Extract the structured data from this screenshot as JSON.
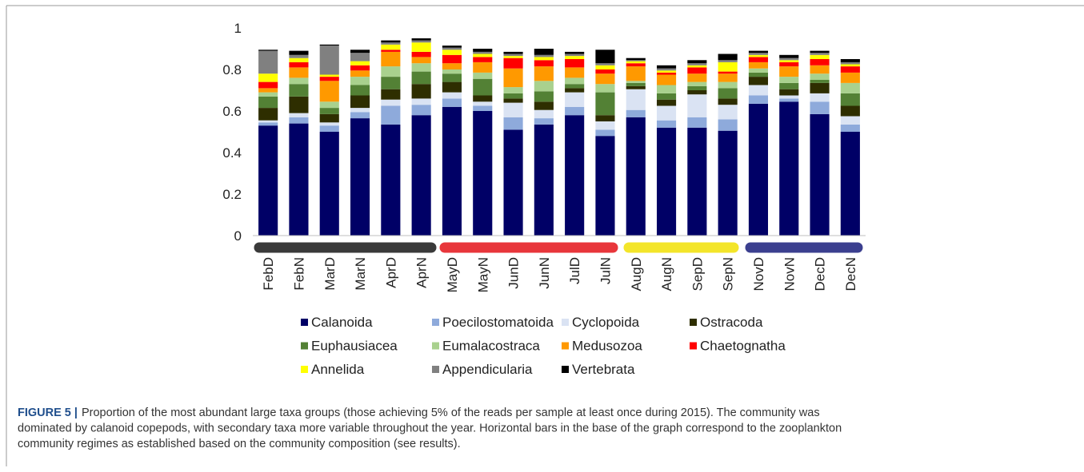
{
  "chart_data": {
    "type": "stacked_bar",
    "categories": [
      "FebD",
      "FebN",
      "MarD",
      "MarN",
      "AprD",
      "AprN",
      "MayD",
      "MayN",
      "JunD",
      "JunN",
      "JulD",
      "JulN",
      "AugD",
      "AugN",
      "SepD",
      "SepN",
      "NovD",
      "NovN",
      "DecD",
      "DecN"
    ],
    "series": [
      {
        "name": "Calanoida",
        "color": "#000066",
        "values": [
          0.53,
          0.54,
          0.5,
          0.565,
          0.535,
          0.58,
          0.62,
          0.6,
          0.51,
          0.535,
          0.58,
          0.48,
          0.57,
          0.52,
          0.52,
          0.505,
          0.635,
          0.645,
          0.585,
          0.5
        ]
      },
      {
        "name": "Poecilostomatoida",
        "color": "#8eaadb",
        "values": [
          0.015,
          0.03,
          0.03,
          0.03,
          0.09,
          0.05,
          0.04,
          0.025,
          0.06,
          0.03,
          0.04,
          0.03,
          0.035,
          0.035,
          0.05,
          0.055,
          0.04,
          0.015,
          0.06,
          0.035
        ]
      },
      {
        "name": "Cyclopoida",
        "color": "#dae3f3",
        "values": [
          0.01,
          0.02,
          0.015,
          0.02,
          0.03,
          0.03,
          0.03,
          0.02,
          0.07,
          0.04,
          0.07,
          0.04,
          0.1,
          0.07,
          0.11,
          0.07,
          0.05,
          0.015,
          0.04,
          0.04
        ]
      },
      {
        "name": "Ostracoda",
        "color": "#2e2e00",
        "values": [
          0.06,
          0.08,
          0.04,
          0.06,
          0.05,
          0.07,
          0.05,
          0.03,
          0.02,
          0.04,
          0.02,
          0.03,
          0.015,
          0.03,
          0.02,
          0.03,
          0.04,
          0.03,
          0.05,
          0.05
        ]
      },
      {
        "name": "Euphausiacea",
        "color": "#538135",
        "values": [
          0.055,
          0.06,
          0.03,
          0.05,
          0.06,
          0.06,
          0.04,
          0.08,
          0.025,
          0.05,
          0.02,
          0.11,
          0.015,
          0.03,
          0.02,
          0.05,
          0.02,
          0.03,
          0.015,
          0.06
        ]
      },
      {
        "name": "Eumalacostraca",
        "color": "#a9d18e",
        "values": [
          0.02,
          0.03,
          0.03,
          0.04,
          0.05,
          0.04,
          0.02,
          0.03,
          0.03,
          0.05,
          0.03,
          0.04,
          0.01,
          0.04,
          0.02,
          0.03,
          0.02,
          0.03,
          0.03,
          0.05
        ]
      },
      {
        "name": "Medusozoa",
        "color": "#ff9900",
        "values": [
          0.02,
          0.05,
          0.1,
          0.03,
          0.07,
          0.03,
          0.03,
          0.05,
          0.09,
          0.07,
          0.05,
          0.05,
          0.07,
          0.05,
          0.04,
          0.04,
          0.03,
          0.05,
          0.04,
          0.05
        ]
      },
      {
        "name": "Chaetognatha",
        "color": "#ff0000",
        "values": [
          0.03,
          0.025,
          0.02,
          0.025,
          0.01,
          0.025,
          0.04,
          0.025,
          0.05,
          0.03,
          0.04,
          0.02,
          0.015,
          0.01,
          0.03,
          0.01,
          0.025,
          0.02,
          0.03,
          0.03
        ]
      },
      {
        "name": "Annelida",
        "color": "#ffff00",
        "values": [
          0.04,
          0.02,
          0.01,
          0.02,
          0.025,
          0.045,
          0.025,
          0.015,
          0.01,
          0.015,
          0.015,
          0.02,
          0.01,
          0.01,
          0.01,
          0.045,
          0.01,
          0.01,
          0.02,
          0.01
        ]
      },
      {
        "name": "Appendicularia",
        "color": "#808080",
        "values": [
          0.11,
          0.015,
          0.14,
          0.04,
          0.01,
          0.01,
          0.01,
          0.01,
          0.01,
          0.01,
          0.01,
          0.01,
          0.005,
          0.01,
          0.01,
          0.01,
          0.01,
          0.01,
          0.01,
          0.01
        ]
      },
      {
        "name": "Vertebrata",
        "color": "#000000",
        "values": [
          0.005,
          0.02,
          0.005,
          0.015,
          0.01,
          0.01,
          0.01,
          0.015,
          0.01,
          0.03,
          0.01,
          0.065,
          0.01,
          0.015,
          0.015,
          0.03,
          0.01,
          0.015,
          0.01,
          0.015
        ]
      }
    ],
    "ylim": [
      0,
      1
    ],
    "yticks": [
      0,
      0.2,
      0.4,
      0.6,
      0.8,
      1
    ],
    "grid": false
  },
  "caption": {
    "label": "FIGURE 5 |",
    "lines": [
      "Proportion of the most abundant large taxa groups (those achieving 5% of the reads per sample at least once during 2015). The community was",
      "dominated by calanoid copepods, with secondary taxa more variable throughout the year. Horizontal bars in the base of the graph correspond to the zooplankton",
      "community regimes as established based on the community composition (see results)."
    ]
  }
}
